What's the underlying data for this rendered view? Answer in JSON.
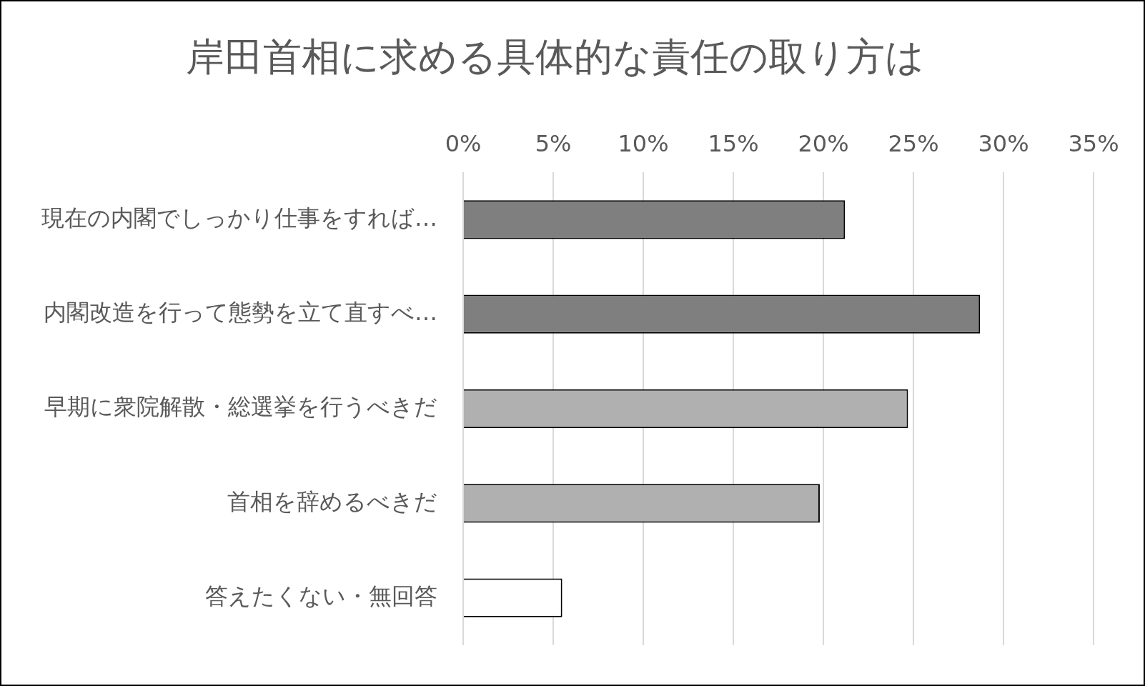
{
  "chart_data": {
    "type": "bar",
    "orientation": "horizontal",
    "title": "岸田首相に求める具体的な責任の取り方は",
    "categories": [
      "現在の内閣でしっかり仕事をすれば…",
      "内閣改造を行って態勢を立て直すべ…",
      "早期に衆院解散・総選挙を行うべきだ",
      "首相を辞めるべきだ",
      "答えたくない・無回答"
    ],
    "values": [
      21.2,
      28.7,
      24.7,
      19.8,
      5.5
    ],
    "colors": [
      "#7f7f7f",
      "#7f7f7f",
      "#b0b0b0",
      "#b0b0b0",
      "#ffffff"
    ],
    "xlim": [
      0,
      35
    ],
    "xticks": [
      {
        "value": 0,
        "label": "0%"
      },
      {
        "value": 5,
        "label": "5%"
      },
      {
        "value": 10,
        "label": "10%"
      },
      {
        "value": 15,
        "label": "15%"
      },
      {
        "value": 20,
        "label": "20%"
      },
      {
        "value": 25,
        "label": "25%"
      },
      {
        "value": 30,
        "label": "30%"
      },
      {
        "value": 35,
        "label": "35%"
      }
    ],
    "grid": "x",
    "legend": false
  }
}
